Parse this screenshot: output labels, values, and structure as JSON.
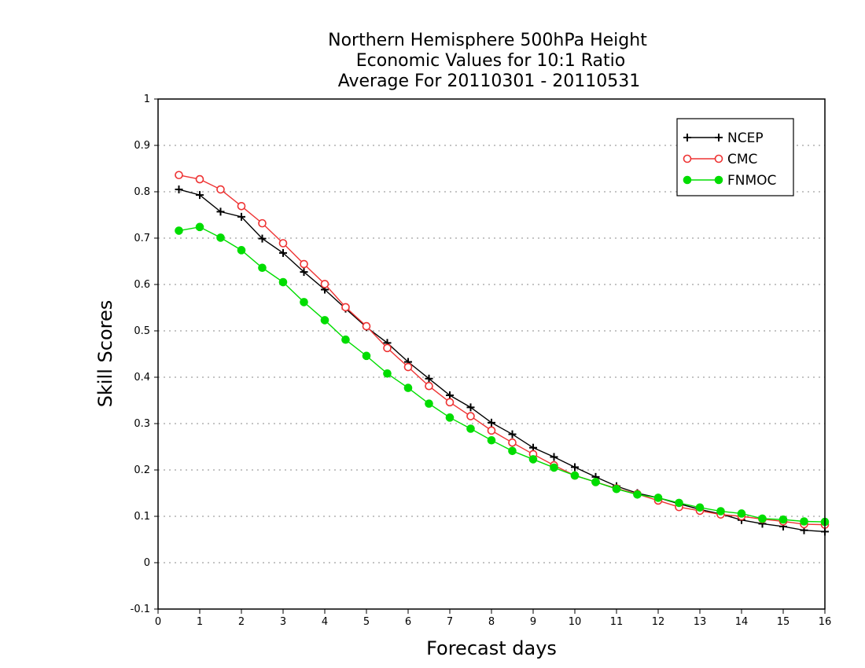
{
  "chart_data": {
    "type": "line",
    "title_lines": [
      "Northern Hemisphere 500hPa Height",
      "Economic Values for 10:1 Ratio",
      "Average For 20110301 - 20110531"
    ],
    "xlabel": "Forecast days",
    "ylabel": "Skill Scores",
    "xlim": [
      0,
      16
    ],
    "ylim": [
      -0.1,
      1
    ],
    "xticks": [
      0,
      1,
      2,
      3,
      4,
      5,
      6,
      7,
      8,
      9,
      10,
      11,
      12,
      13,
      14,
      15,
      16
    ],
    "yticks": [
      -0.1,
      0,
      0.1,
      0.2,
      0.3,
      0.4,
      0.5,
      0.6,
      0.7,
      0.8,
      0.9,
      1
    ],
    "ytick_labels": [
      "-0.1",
      "0",
      "0.1",
      "0.2",
      "0.3",
      "0.4",
      "0.5",
      "0.6",
      "0.7",
      "0.8",
      "0.9",
      "1"
    ],
    "grid": "horizontal dotted",
    "legend_position": "top-right",
    "x": [
      0.5,
      1,
      1.5,
      2,
      2.5,
      3,
      3.5,
      4,
      4.5,
      5,
      5.5,
      6,
      6.5,
      7,
      7.5,
      8,
      8.5,
      9,
      9.5,
      10,
      10.5,
      11,
      11.5,
      12,
      12.5,
      13,
      13.5,
      14,
      14.5,
      15,
      15.5,
      16
    ],
    "series": [
      {
        "name": "NCEP",
        "color": "#000000",
        "marker": "plus",
        "values": [
          0.805,
          0.793,
          0.757,
          0.746,
          0.699,
          0.668,
          0.627,
          0.589,
          0.548,
          0.508,
          0.474,
          0.433,
          0.397,
          0.361,
          0.335,
          0.302,
          0.277,
          0.248,
          0.228,
          0.206,
          0.185,
          0.165,
          0.15,
          0.14,
          0.127,
          0.115,
          0.105,
          0.092,
          0.084,
          0.078,
          0.07,
          0.067
        ]
      },
      {
        "name": "CMC",
        "color": "#ee3333",
        "marker": "open-circle",
        "values": [
          0.836,
          0.827,
          0.805,
          0.769,
          0.732,
          0.689,
          0.644,
          0.601,
          0.551,
          0.51,
          0.463,
          0.422,
          0.381,
          0.346,
          0.316,
          0.285,
          0.259,
          0.234,
          0.21,
          0.188,
          0.174,
          0.16,
          0.148,
          0.134,
          0.12,
          0.112,
          0.104,
          0.1,
          0.094,
          0.089,
          0.083,
          0.082
        ]
      },
      {
        "name": "FNMOC",
        "color": "#00dd00",
        "marker": "filled-circle",
        "values": [
          0.716,
          0.724,
          0.701,
          0.674,
          0.636,
          0.605,
          0.562,
          0.523,
          0.481,
          0.446,
          0.408,
          0.377,
          0.343,
          0.313,
          0.289,
          0.264,
          0.241,
          0.223,
          0.205,
          0.188,
          0.174,
          0.159,
          0.147,
          0.14,
          0.129,
          0.119,
          0.111,
          0.106,
          0.095,
          0.093,
          0.089,
          0.088
        ]
      }
    ]
  }
}
